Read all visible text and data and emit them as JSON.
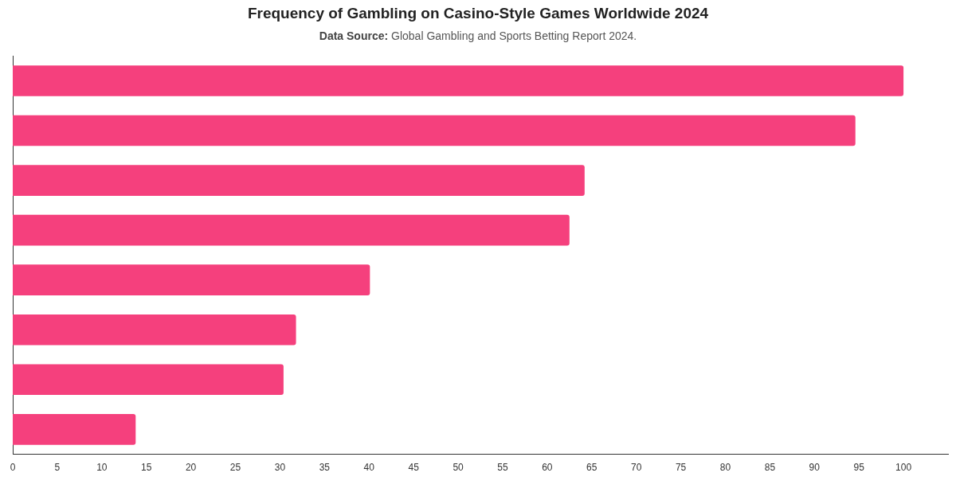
{
  "chart_data": {
    "type": "bar",
    "orientation": "horizontal",
    "title": "Frequency of Gambling on Casino-Style Games Worldwide 2024",
    "subtitle": "Data Source: Global Gambling and Sports Betting Report 2024.",
    "categories": [
      null,
      null,
      null,
      null,
      null,
      null,
      null,
      null
    ],
    "values": [
      100,
      94.6,
      64.2,
      62.5,
      40.1,
      31.8,
      30.4,
      13.8
    ],
    "color": "#f5407d",
    "xlim": [
      0,
      105
    ],
    "xticks": [
      0,
      5,
      10,
      15,
      20,
      25,
      30,
      35,
      40,
      45,
      50,
      55,
      60,
      65,
      70,
      75,
      80,
      85,
      90,
      95,
      100
    ],
    "grid": false,
    "legend": false
  }
}
